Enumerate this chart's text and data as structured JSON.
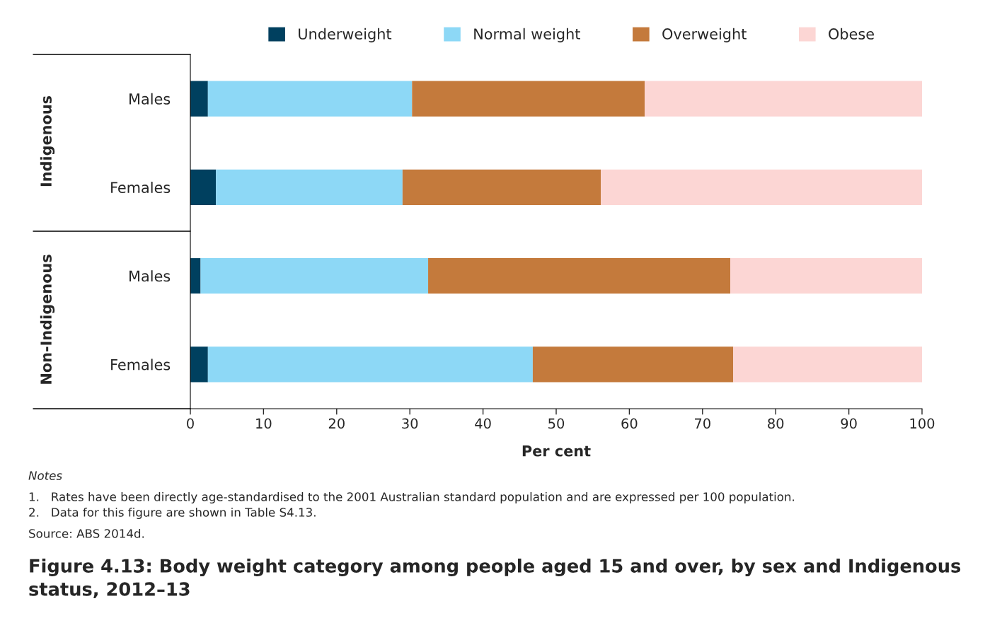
{
  "chart_data": {
    "type": "bar",
    "orientation": "horizontal",
    "stacked": true,
    "title": "Figure 4.13: Body weight category among people aged 15 and over, by sex and Indigenous status, 2012–13",
    "xlabel": "Per cent",
    "categories": [
      "Males",
      "Females",
      "Males",
      "Females"
    ],
    "series": [
      {
        "name": "Underweight",
        "color": "#00405f",
        "values": [
          2.4,
          3.5,
          1.4,
          2.4
        ]
      },
      {
        "name": "Normal weight",
        "color": "#8dd8f6",
        "values": [
          27.9,
          25.5,
          31.1,
          44.4
        ]
      },
      {
        "name": "Overweight",
        "color": "#c47a3c",
        "values": [
          31.8,
          27.1,
          41.3,
          27.4
        ]
      },
      {
        "name": "Obese",
        "color": "#fcd6d4",
        "values": [
          38.0,
          43.9,
          26.5,
          26.0
        ]
      }
    ],
    "xlim": [
      0,
      100
    ],
    "xticks": [
      0,
      10,
      20,
      30,
      40,
      50,
      60,
      70,
      80,
      90,
      100
    ],
    "grid": false,
    "legend": "top",
    "annotations": [
      "Indigenous",
      "Non-Indigenous",
      "Notes",
      "1.   Rates have been directly age-standardised to the 2001 Australian standard population and are expressed per 100 population.",
      "2.   Data for this figure are shown in Table S4.13.",
      "Source: ABS 2014d."
    ]
  }
}
